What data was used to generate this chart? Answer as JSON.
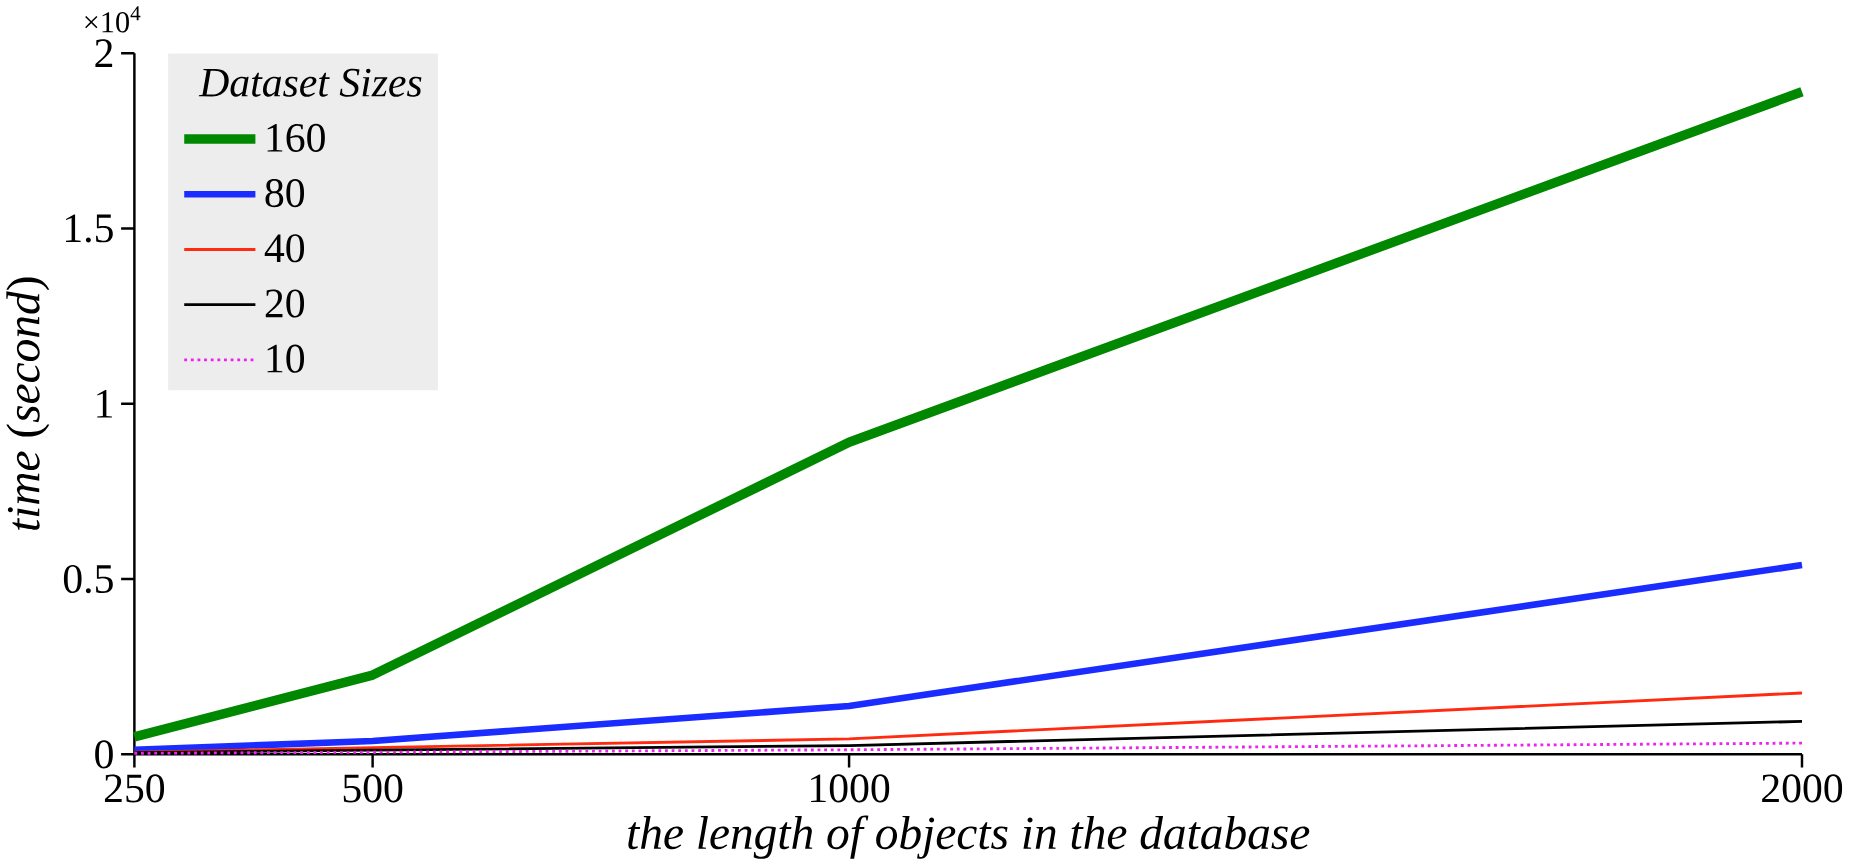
{
  "chart_data": {
    "type": "line",
    "xlabel": "the length of objects in the database",
    "ylabel": "*time* (*second*)",
    "legend_title": "Dataset Sizes",
    "legend": "top left",
    "annotations": [
      "×10$^{4}$"
    ],
    "x": [
      250,
      500,
      1000,
      2000
    ],
    "xlim": [
      250,
      2000
    ],
    "xticks": [
      250,
      500,
      1000,
      2000
    ],
    "ylim": [
      0,
      2
    ],
    "yticks": [
      0,
      0.5,
      1,
      1.5,
      2
    ],
    "series": [
      {
        "name": "160",
        "color": "#008800",
        "values": [
          0.05,
          0.226,
          0.89,
          1.89
        ]
      },
      {
        "name": "80",
        "color": "#1a2cff",
        "values": [
          0.013,
          0.038,
          0.138,
          0.54
        ]
      },
      {
        "name": "40",
        "color": "#ff2a10",
        "values": [
          0.006,
          0.019,
          0.044,
          0.175
        ]
      },
      {
        "name": "20",
        "color": "#000000",
        "values": [
          0.005,
          0.012,
          0.025,
          0.094
        ]
      },
      {
        "name": "10",
        "color": "#ee22ee",
        "values": [
          0.003,
          0.006,
          0.013,
          0.032
        ],
        "line_style": "dotted"
      }
    ]
  }
}
